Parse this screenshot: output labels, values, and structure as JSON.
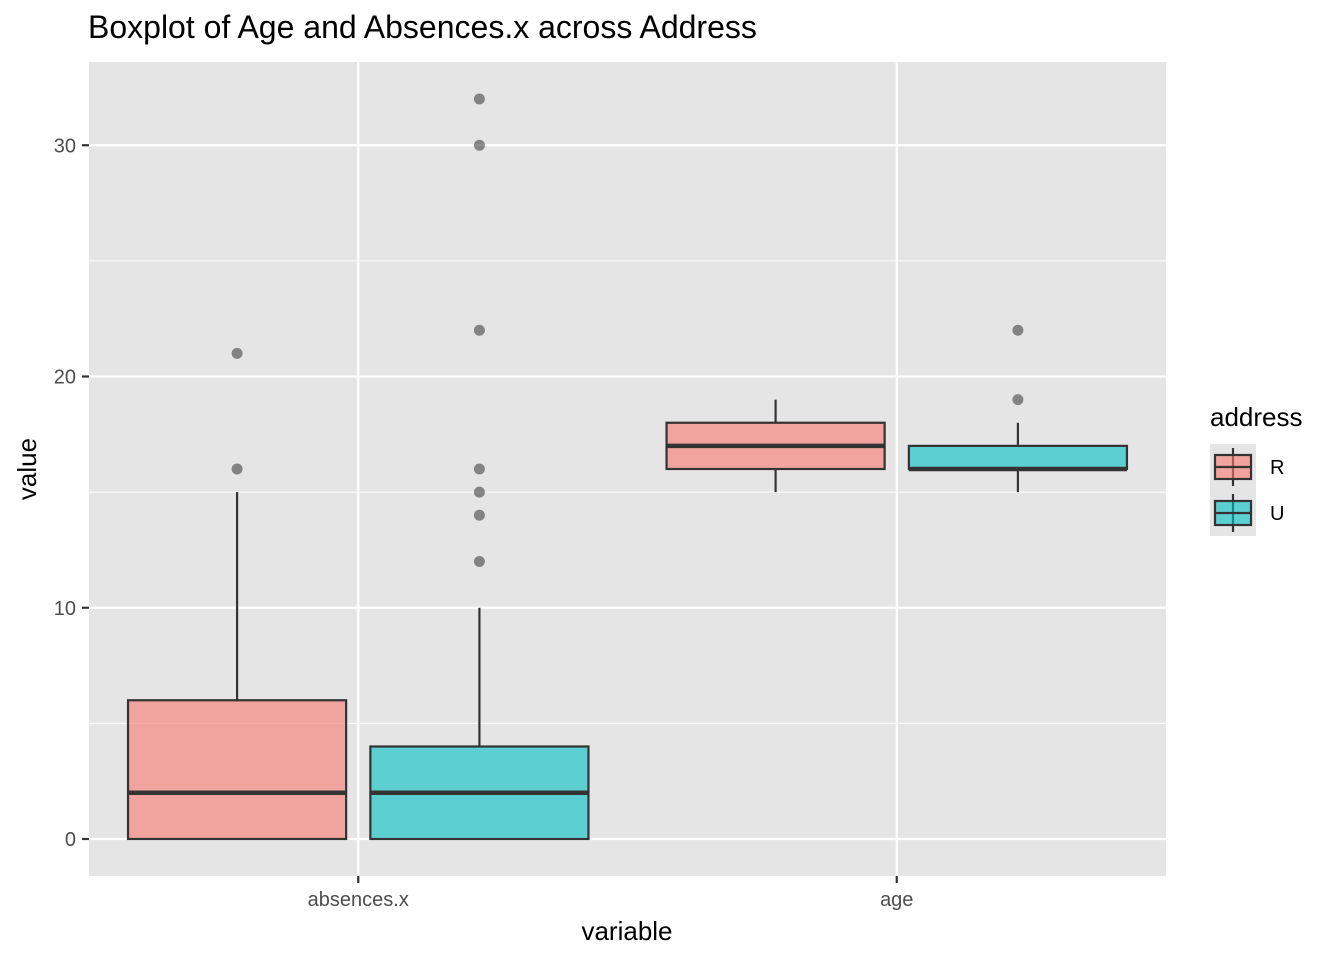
{
  "chart_data": {
    "type": "boxplot",
    "title": "Boxplot of Age and Absences.x across Address",
    "xlabel": "variable",
    "ylabel": "value",
    "categories": [
      "absences.x",
      "age"
    ],
    "yticks": [
      0,
      10,
      20,
      30
    ],
    "ylim": [
      -1.6,
      33.6
    ],
    "grid": true,
    "legend": {
      "title": "address",
      "placement": "right",
      "entries": [
        {
          "label": "R",
          "color": "#F8766D"
        },
        {
          "label": "U",
          "color": "#00BFC4"
        }
      ]
    },
    "series": [
      {
        "name": "R",
        "color": "#F8766D",
        "boxes": [
          {
            "category": "absences.x",
            "min": 0,
            "q1": 0,
            "median": 2,
            "q3": 6,
            "max": 15,
            "outliers": [
              16,
              21
            ]
          },
          {
            "category": "age",
            "min": 15,
            "q1": 16,
            "median": 17,
            "q3": 18,
            "max": 19,
            "outliers": []
          }
        ]
      },
      {
        "name": "U",
        "color": "#00BFC4",
        "boxes": [
          {
            "category": "absences.x",
            "min": 0,
            "q1": 0,
            "median": 2,
            "q3": 4,
            "max": 10,
            "outliers": [
              12,
              14,
              15,
              16,
              22,
              30,
              32
            ]
          },
          {
            "category": "age",
            "min": 15,
            "q1": 16,
            "median": 16,
            "q3": 17,
            "max": 18,
            "outliers": [
              19,
              22
            ]
          }
        ]
      }
    ],
    "colors": {
      "panel": "#E5E5E5",
      "grid_major": "#FFFFFF",
      "box_line": "#333333",
      "outlier": "#333333"
    }
  }
}
